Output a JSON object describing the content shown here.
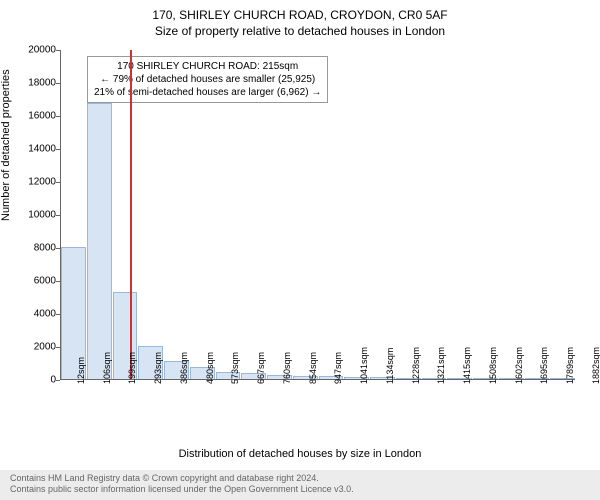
{
  "header": {
    "title": "170, SHIRLEY CHURCH ROAD, CROYDON, CR0 5AF",
    "subtitle": "Size of property relative to detached houses in London"
  },
  "chart": {
    "type": "histogram",
    "ylabel": "Number of detached properties",
    "xlabel": "Distribution of detached houses by size in London",
    "ylim": [
      0,
      20000
    ],
    "ytick_step": 2000,
    "yticks": [
      0,
      2000,
      4000,
      6000,
      8000,
      10000,
      12000,
      14000,
      16000,
      18000,
      20000
    ],
    "xticks": [
      "12sqm",
      "106sqm",
      "199sqm",
      "293sqm",
      "386sqm",
      "480sqm",
      "573sqm",
      "667sqm",
      "760sqm",
      "854sqm",
      "947sqm",
      "1041sqm",
      "1134sqm",
      "1228sqm",
      "1321sqm",
      "1415sqm",
      "1508sqm",
      "1602sqm",
      "1695sqm",
      "1789sqm",
      "1882sqm"
    ],
    "bar_color": "#d7e4f4",
    "bar_border": "#9bb8db",
    "background_color": "#ffffff",
    "values": [
      8000,
      16700,
      5300,
      2000,
      1100,
      700,
      450,
      350,
      250,
      200,
      160,
      130,
      100,
      90,
      70,
      60,
      50,
      40,
      30,
      25
    ],
    "marker": {
      "position_sqm": 215,
      "color": "#cc3333"
    },
    "annotation": {
      "line1": "170 SHIRLEY CHURCH ROAD: 215sqm",
      "line2": "← 79% of detached houses are smaller (25,925)",
      "line3": "21% of semi-detached houses are larger (6,962) →"
    },
    "title_fontsize": 12,
    "label_fontsize": 11,
    "tick_fontsize": 10
  },
  "footer": {
    "line1": "Contains HM Land Registry data © Crown copyright and database right 2024.",
    "line2": "Contains public sector information licensed under the Open Government Licence v3.0."
  }
}
